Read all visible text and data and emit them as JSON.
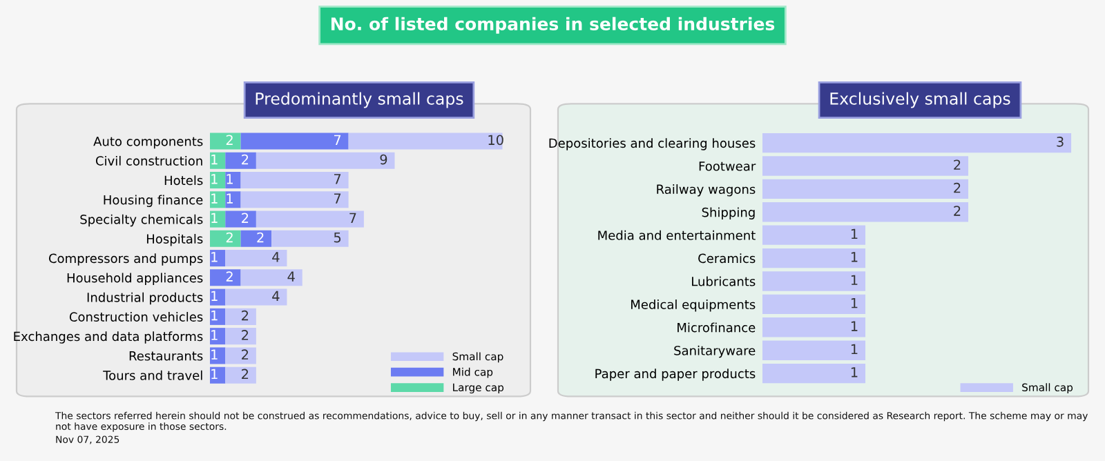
{
  "chart_data": [
    {
      "type": "bar",
      "orientation": "horizontal",
      "stacked": true,
      "title": "Predominantly small caps",
      "annotations": [
        "No. of listed companies in selected industries",
        "The sectors referred herein should not be construed as recommendations, advice to buy, sell or in any manner transact in this sector and neither should it be considered as Research report. The scheme may or may not have exposure in those sectors.",
        "Nov 07, 2025"
      ],
      "categories": [
        "Auto components",
        "Civil construction",
        "Hotels",
        "Housing finance",
        "Specialty chemicals",
        "Hospitals",
        "Compressors and pumps",
        "Household appliances",
        "Industrial products",
        "Construction vehicles",
        "Exchanges and data platforms",
        "Restaurants",
        "Tours and travel"
      ],
      "series": [
        {
          "name": "Large cap",
          "color": "#5dd9a9",
          "values": [
            2,
            1,
            1,
            1,
            1,
            2,
            null,
            null,
            null,
            null,
            null,
            null,
            null
          ]
        },
        {
          "name": "Mid cap",
          "color": "#6c7cf2",
          "values": [
            7,
            2,
            1,
            1,
            2,
            2,
            1,
            2,
            1,
            1,
            1,
            1,
            1
          ]
        },
        {
          "name": "Small cap",
          "color": "#c4c8f9",
          "values": [
            10,
            9,
            7,
            7,
            7,
            5,
            4,
            4,
            4,
            2,
            2,
            2,
            2
          ]
        }
      ],
      "data_labels": true,
      "legend": "bottom right",
      "grid": false,
      "tick_labels": "y"
    },
    {
      "type": "bar",
      "orientation": "horizontal",
      "stacked": true,
      "title": "Exclusively small caps",
      "categories": [
        "Depositories and clearing houses",
        "Footwear",
        "Railway wagons",
        "Shipping",
        "Media and entertainment",
        "Ceramics",
        "Lubricants",
        "Medical equipments",
        "Microfinance",
        "Sanitaryware",
        "Paper and paper products"
      ],
      "series": [
        {
          "name": "Small cap",
          "color": "#c4c8f9",
          "values": [
            3,
            2,
            2,
            2,
            1,
            1,
            1,
            1,
            1,
            1,
            1
          ]
        }
      ],
      "data_labels": true,
      "legend": "bottom right",
      "grid": false,
      "tick_labels": "y"
    }
  ]
}
